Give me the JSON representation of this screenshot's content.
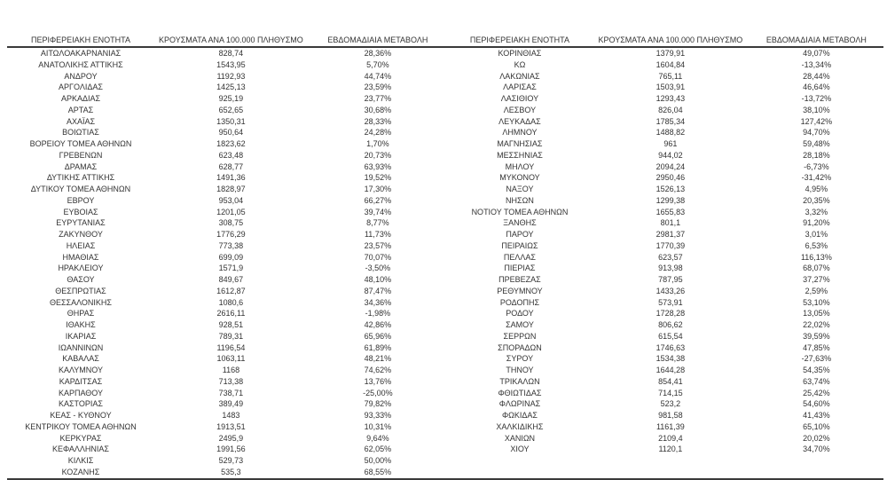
{
  "table": {
    "headers": {
      "region": "ΠΕΡΙΦΕΡΕΙΑΚΗ ΕΝΟΤΗΤΑ",
      "cases": "ΚΡΟΥΣΜΑΤΑ ΑΝΑ 100.000 ΠΛΗΘΥΣΜΟ",
      "change": "ΕΒΔΟΜΑΔΙΑΙΑ ΜΕΤΑΒΟΛΗ"
    },
    "text_color": "#333333",
    "rule_color": "#3a3a3a",
    "rows": [
      {
        "left": {
          "region": "ΑΙΤΩΛΟΑΚΑΡΝΑΝΙΑΣ",
          "cases": "828,74",
          "change": "28,36%"
        },
        "right": {
          "region": "ΚΟΡΙΝΘΙΑΣ",
          "cases": "1379,91",
          "change": "49,07%"
        }
      },
      {
        "left": {
          "region": "ΑΝΑΤΟΛΙΚΗΣ ΑΤΤΙΚΗΣ",
          "cases": "1543,95",
          "change": "5,70%"
        },
        "right": {
          "region": "ΚΩ",
          "cases": "1604,84",
          "change": "-13,34%"
        }
      },
      {
        "left": {
          "region": "ΑΝΔΡΟΥ",
          "cases": "1192,93",
          "change": "44,74%"
        },
        "right": {
          "region": "ΛΑΚΩΝΙΑΣ",
          "cases": "765,11",
          "change": "28,44%"
        }
      },
      {
        "left": {
          "region": "ΑΡΓΟΛΙΔΑΣ",
          "cases": "1425,13",
          "change": "23,59%"
        },
        "right": {
          "region": "ΛΑΡΙΣΑΣ",
          "cases": "1503,91",
          "change": "46,64%"
        }
      },
      {
        "left": {
          "region": "ΑΡΚΑΔΙΑΣ",
          "cases": "925,19",
          "change": "23,77%"
        },
        "right": {
          "region": "ΛΑΣΙΘΙΟΥ",
          "cases": "1293,43",
          "change": "-13,72%"
        }
      },
      {
        "left": {
          "region": "ΑΡΤΑΣ",
          "cases": "652,65",
          "change": "30,68%"
        },
        "right": {
          "region": "ΛΕΣΒΟΥ",
          "cases": "826,04",
          "change": "38,10%"
        }
      },
      {
        "left": {
          "region": "ΑΧΑΪΑΣ",
          "cases": "1350,31",
          "change": "28,33%"
        },
        "right": {
          "region": "ΛΕΥΚΑΔΑΣ",
          "cases": "1785,34",
          "change": "127,42%"
        }
      },
      {
        "left": {
          "region": "ΒΟΙΩΤΙΑΣ",
          "cases": "950,64",
          "change": "24,28%"
        },
        "right": {
          "region": "ΛΗΜΝΟΥ",
          "cases": "1488,82",
          "change": "94,70%"
        }
      },
      {
        "left": {
          "region": "ΒΟΡΕΙΟΥ ΤΟΜΕΑ ΑΘΗΝΩΝ",
          "cases": "1823,62",
          "change": "1,70%"
        },
        "right": {
          "region": "ΜΑΓΝΗΣΙΑΣ",
          "cases": "961",
          "change": "59,48%"
        }
      },
      {
        "left": {
          "region": "ΓΡΕΒΕΝΩΝ",
          "cases": "623,48",
          "change": "20,73%"
        },
        "right": {
          "region": "ΜΕΣΣΗΝΙΑΣ",
          "cases": "944,02",
          "change": "28,18%"
        }
      },
      {
        "left": {
          "region": "ΔΡΑΜΑΣ",
          "cases": "628,77",
          "change": "63,93%"
        },
        "right": {
          "region": "ΜΗΛΟΥ",
          "cases": "2094,24",
          "change": "-6,73%"
        }
      },
      {
        "left": {
          "region": "ΔΥΤΙΚΗΣ ΑΤΤΙΚΗΣ",
          "cases": "1491,36",
          "change": "19,52%"
        },
        "right": {
          "region": "ΜΥΚΟΝΟΥ",
          "cases": "2950,46",
          "change": "-31,42%"
        }
      },
      {
        "left": {
          "region": "ΔΥΤΙΚΟΥ ΤΟΜΕΑ ΑΘΗΝΩΝ",
          "cases": "1828,97",
          "change": "17,30%"
        },
        "right": {
          "region": "ΝΑΞΟΥ",
          "cases": "1526,13",
          "change": "4,95%"
        }
      },
      {
        "left": {
          "region": "ΕΒΡΟΥ",
          "cases": "953,04",
          "change": "66,27%"
        },
        "right": {
          "region": "ΝΗΣΩΝ",
          "cases": "1299,38",
          "change": "20,35%"
        }
      },
      {
        "left": {
          "region": "ΕΥΒΟΙΑΣ",
          "cases": "1201,05",
          "change": "39,74%"
        },
        "right": {
          "region": "ΝΟΤΙΟΥ ΤΟΜΕΑ ΑΘΗΝΩΝ",
          "cases": "1655,83",
          "change": "3,32%"
        }
      },
      {
        "left": {
          "region": "ΕΥΡΥΤΑΝΙΑΣ",
          "cases": "308,75",
          "change": "8,77%"
        },
        "right": {
          "region": "ΞΑΝΘΗΣ",
          "cases": "801,1",
          "change": "91,20%"
        }
      },
      {
        "left": {
          "region": "ΖΑΚΥΝΘΟΥ",
          "cases": "1776,29",
          "change": "11,73%"
        },
        "right": {
          "region": "ΠΑΡΟΥ",
          "cases": "2981,37",
          "change": "3,01%"
        }
      },
      {
        "left": {
          "region": "ΗΛΕΙΑΣ",
          "cases": "773,38",
          "change": "23,57%"
        },
        "right": {
          "region": "ΠΕΙΡΑΙΩΣ",
          "cases": "1770,39",
          "change": "6,53%"
        }
      },
      {
        "left": {
          "region": "ΗΜΑΘΙΑΣ",
          "cases": "699,09",
          "change": "70,07%"
        },
        "right": {
          "region": "ΠΕΛΛΑΣ",
          "cases": "623,57",
          "change": "116,13%"
        }
      },
      {
        "left": {
          "region": "ΗΡΑΚΛΕΙΟΥ",
          "cases": "1571,9",
          "change": "-3,50%"
        },
        "right": {
          "region": "ΠΙΕΡΙΑΣ",
          "cases": "913,98",
          "change": "68,07%"
        }
      },
      {
        "left": {
          "region": "ΘΑΣΟΥ",
          "cases": "849,67",
          "change": "48,10%"
        },
        "right": {
          "region": "ΠΡΕΒΕΖΑΣ",
          "cases": "787,95",
          "change": "37,27%"
        }
      },
      {
        "left": {
          "region": "ΘΕΣΠΡΩΤΙΑΣ",
          "cases": "1612,87",
          "change": "87,47%"
        },
        "right": {
          "region": "ΡΕΘΥΜΝΟΥ",
          "cases": "1433,26",
          "change": "2,59%"
        }
      },
      {
        "left": {
          "region": "ΘΕΣΣΑΛΟΝΙΚΗΣ",
          "cases": "1080,6",
          "change": "34,36%"
        },
        "right": {
          "region": "ΡΟΔΟΠΗΣ",
          "cases": "573,91",
          "change": "53,10%"
        }
      },
      {
        "left": {
          "region": "ΘΗΡΑΣ",
          "cases": "2616,11",
          "change": "-1,98%"
        },
        "right": {
          "region": "ΡΟΔΟΥ",
          "cases": "1728,28",
          "change": "13,05%"
        }
      },
      {
        "left": {
          "region": "ΙΘΑΚΗΣ",
          "cases": "928,51",
          "change": "42,86%"
        },
        "right": {
          "region": "ΣΑΜΟΥ",
          "cases": "806,62",
          "change": "22,02%"
        }
      },
      {
        "left": {
          "region": "ΙΚΑΡΙΑΣ",
          "cases": "789,31",
          "change": "65,96%"
        },
        "right": {
          "region": "ΣΕΡΡΩΝ",
          "cases": "615,54",
          "change": "39,59%"
        }
      },
      {
        "left": {
          "region": "ΙΩΑΝΝΙΝΩΝ",
          "cases": "1196,54",
          "change": "61,89%"
        },
        "right": {
          "region": "ΣΠΟΡΑΔΩΝ",
          "cases": "1746,63",
          "change": "47,85%"
        }
      },
      {
        "left": {
          "region": "ΚΑΒΑΛΑΣ",
          "cases": "1063,11",
          "change": "48,21%"
        },
        "right": {
          "region": "ΣΥΡΟΥ",
          "cases": "1534,38",
          "change": "-27,63%"
        }
      },
      {
        "left": {
          "region": "ΚΑΛΥΜΝΟΥ",
          "cases": "1168",
          "change": "74,62%"
        },
        "right": {
          "region": "ΤΗΝΟΥ",
          "cases": "1644,28",
          "change": "54,35%"
        }
      },
      {
        "left": {
          "region": "ΚΑΡΔΙΤΣΑΣ",
          "cases": "713,38",
          "change": "13,76%"
        },
        "right": {
          "region": "ΤΡΙΚΑΛΩΝ",
          "cases": "854,41",
          "change": "63,74%"
        }
      },
      {
        "left": {
          "region": "ΚΑΡΠΑΘΟΥ",
          "cases": "738,71",
          "change": "-25,00%"
        },
        "right": {
          "region": "ΦΘΙΩΤΙΔΑΣ",
          "cases": "714,15",
          "change": "25,42%"
        }
      },
      {
        "left": {
          "region": "ΚΑΣΤΟΡΙΑΣ",
          "cases": "389,49",
          "change": "79,82%"
        },
        "right": {
          "region": "ΦΛΩΡΙΝΑΣ",
          "cases": "523,2",
          "change": "54,60%"
        }
      },
      {
        "left": {
          "region": "ΚΕΑΣ - ΚΥΘΝΟΥ",
          "cases": "1483",
          "change": "93,33%"
        },
        "right": {
          "region": "ΦΩΚΙΔΑΣ",
          "cases": "981,58",
          "change": "41,43%"
        }
      },
      {
        "left": {
          "region": "ΚΕΝΤΡΙΚΟΥ ΤΟΜΕΑ ΑΘΗΝΩΝ",
          "cases": "1913,51",
          "change": "10,31%"
        },
        "right": {
          "region": "ΧΑΛΚΙΔΙΚΗΣ",
          "cases": "1161,39",
          "change": "65,10%"
        }
      },
      {
        "left": {
          "region": "ΚΕΡΚΥΡΑΣ",
          "cases": "2495,9",
          "change": "9,64%"
        },
        "right": {
          "region": "ΧΑΝΙΩΝ",
          "cases": "2109,4",
          "change": "20,02%"
        }
      },
      {
        "left": {
          "region": "ΚΕΦΑΛΛΗΝΙΑΣ",
          "cases": "1991,56",
          "change": "62,05%"
        },
        "right": {
          "region": "ΧΙΟΥ",
          "cases": "1120,1",
          "change": "34,70%"
        }
      },
      {
        "left": {
          "region": "ΚΙΛΚΙΣ",
          "cases": "529,73",
          "change": "50,00%"
        },
        "right": {
          "region": "",
          "cases": "",
          "change": ""
        }
      },
      {
        "left": {
          "region": "ΚΟΖΑΝΗΣ",
          "cases": "535,3",
          "change": "68,55%"
        },
        "right": {
          "region": "",
          "cases": "",
          "change": ""
        }
      }
    ]
  }
}
